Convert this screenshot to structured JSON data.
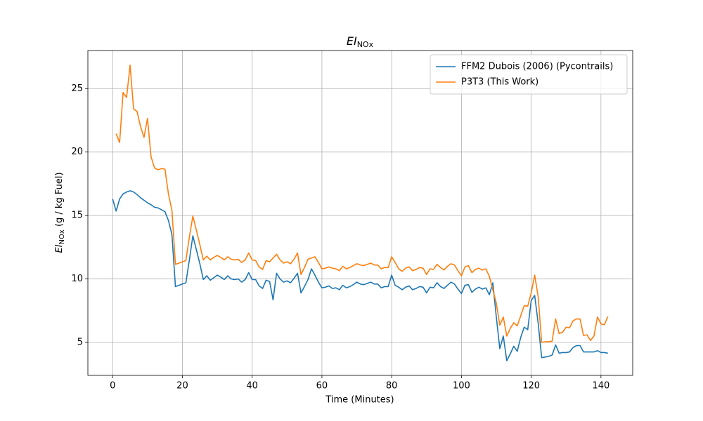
{
  "chart_data": {
    "type": "line",
    "title": [
      "EI",
      "NOx"
    ],
    "xlabel": "Time (Minutes)",
    "ylabel": [
      "EI",
      "NOx",
      " (g / kg Fuel)"
    ],
    "x": [
      0,
      1,
      2,
      3,
      4,
      5,
      6,
      7,
      8,
      9,
      10,
      11,
      12,
      13,
      14,
      15,
      16,
      17,
      18,
      19,
      20,
      21,
      22,
      23,
      24,
      25,
      26,
      27,
      28,
      29,
      30,
      31,
      32,
      33,
      34,
      35,
      36,
      37,
      38,
      39,
      40,
      41,
      42,
      43,
      44,
      45,
      46,
      47,
      48,
      49,
      50,
      51,
      52,
      53,
      54,
      55,
      56,
      57,
      58,
      59,
      60,
      61,
      62,
      63,
      64,
      65,
      66,
      67,
      68,
      69,
      70,
      71,
      72,
      73,
      74,
      75,
      76,
      77,
      78,
      79,
      80,
      81,
      82,
      83,
      84,
      85,
      86,
      87,
      88,
      89,
      90,
      91,
      92,
      93,
      94,
      95,
      96,
      97,
      98,
      99,
      100,
      101,
      102,
      103,
      104,
      105,
      106,
      107,
      108,
      109,
      110,
      111,
      112,
      113,
      114,
      115,
      116,
      117,
      118,
      119,
      120,
      121,
      122,
      123,
      124,
      125,
      126,
      127,
      128,
      129,
      130,
      131,
      132,
      133,
      134,
      135,
      136,
      137,
      138,
      139,
      140,
      141,
      142
    ],
    "series": [
      {
        "name": "FFM2 Dubois (2006) (Pycontrails)",
        "color": "#1f77b4",
        "values": [
          16.3,
          15.35,
          16.3,
          16.7,
          16.85,
          16.95,
          16.85,
          16.65,
          16.4,
          16.2,
          16.0,
          15.85,
          15.65,
          15.6,
          15.45,
          15.3,
          14.6,
          13.5,
          9.4,
          9.5,
          9.6,
          9.7,
          11.5,
          13.4,
          12.3,
          11.2,
          9.95,
          10.25,
          9.9,
          10.1,
          10.3,
          10.15,
          9.95,
          10.25,
          10.0,
          9.95,
          10.0,
          9.75,
          9.95,
          10.5,
          9.95,
          9.95,
          9.45,
          9.25,
          9.9,
          9.8,
          8.35,
          10.45,
          10.0,
          9.75,
          9.85,
          9.7,
          10.05,
          10.45,
          8.9,
          9.4,
          9.95,
          10.8,
          10.3,
          9.75,
          9.3,
          9.35,
          9.45,
          9.25,
          9.3,
          9.15,
          9.5,
          9.3,
          9.4,
          9.55,
          9.75,
          9.6,
          9.55,
          9.65,
          9.75,
          9.6,
          9.6,
          9.3,
          9.4,
          9.4,
          10.3,
          9.5,
          9.35,
          9.15,
          9.35,
          9.45,
          9.15,
          9.25,
          9.4,
          9.35,
          8.9,
          9.35,
          9.3,
          9.7,
          9.4,
          9.25,
          9.5,
          9.75,
          9.6,
          9.2,
          8.85,
          9.5,
          9.55,
          8.95,
          9.2,
          9.35,
          9.2,
          9.3,
          8.75,
          9.7,
          7.0,
          4.5,
          5.5,
          3.55,
          4.1,
          4.7,
          4.3,
          5.4,
          6.2,
          6.0,
          8.3,
          8.7,
          6.5,
          3.8,
          3.85,
          3.9,
          4.0,
          4.8,
          4.15,
          4.2,
          4.2,
          4.25,
          4.6,
          4.75,
          4.75,
          4.25,
          4.25,
          4.25,
          4.25,
          4.35,
          4.2,
          4.2,
          4.15
        ]
      },
      {
        "name": "P3T3 (This Work)",
        "color": "#ff7f0e",
        "values": [
          null,
          21.45,
          20.75,
          24.7,
          24.3,
          26.85,
          23.4,
          23.2,
          22.0,
          21.15,
          22.65,
          19.65,
          18.75,
          18.6,
          18.7,
          18.65,
          16.7,
          15.4,
          11.15,
          11.25,
          11.35,
          11.45,
          13.3,
          14.95,
          13.85,
          12.7,
          11.5,
          11.8,
          11.5,
          11.7,
          11.85,
          11.7,
          11.5,
          11.75,
          11.55,
          11.5,
          11.55,
          11.3,
          11.5,
          12.05,
          11.5,
          11.45,
          10.95,
          10.75,
          11.45,
          11.35,
          11.65,
          11.95,
          11.5,
          11.25,
          11.35,
          11.2,
          11.55,
          12.05,
          10.35,
          10.9,
          11.55,
          11.65,
          11.75,
          11.3,
          10.8,
          10.85,
          10.95,
          10.85,
          10.8,
          10.65,
          11.0,
          10.8,
          10.9,
          11.05,
          11.2,
          11.1,
          11.05,
          11.15,
          11.25,
          11.1,
          11.1,
          10.8,
          10.9,
          10.9,
          11.75,
          11.3,
          10.8,
          10.6,
          10.85,
          10.95,
          10.65,
          10.75,
          10.9,
          10.85,
          10.35,
          10.8,
          10.75,
          11.15,
          10.9,
          10.7,
          11.0,
          11.2,
          11.1,
          10.65,
          10.25,
          10.95,
          11.05,
          10.5,
          10.75,
          10.85,
          10.7,
          10.8,
          10.2,
          9.15,
          8.1,
          6.35,
          7.0,
          5.5,
          6.1,
          6.55,
          6.3,
          7.1,
          7.9,
          7.85,
          8.9,
          10.3,
          8.6,
          5.0,
          5.05,
          5.05,
          5.1,
          6.85,
          5.7,
          5.8,
          6.2,
          6.15,
          6.7,
          6.85,
          6.85,
          5.55,
          5.6,
          5.15,
          5.5,
          7.0,
          6.45,
          6.4,
          7.05
        ]
      }
    ],
    "xlim": [
      -7.1,
      149.1
    ],
    "ylim": [
      2.4,
      28.0
    ],
    "xticks": [
      0,
      20,
      40,
      60,
      80,
      100,
      120,
      140
    ],
    "yticks": [
      5,
      10,
      15,
      20,
      25
    ],
    "grid": true,
    "legend": "upper right"
  }
}
